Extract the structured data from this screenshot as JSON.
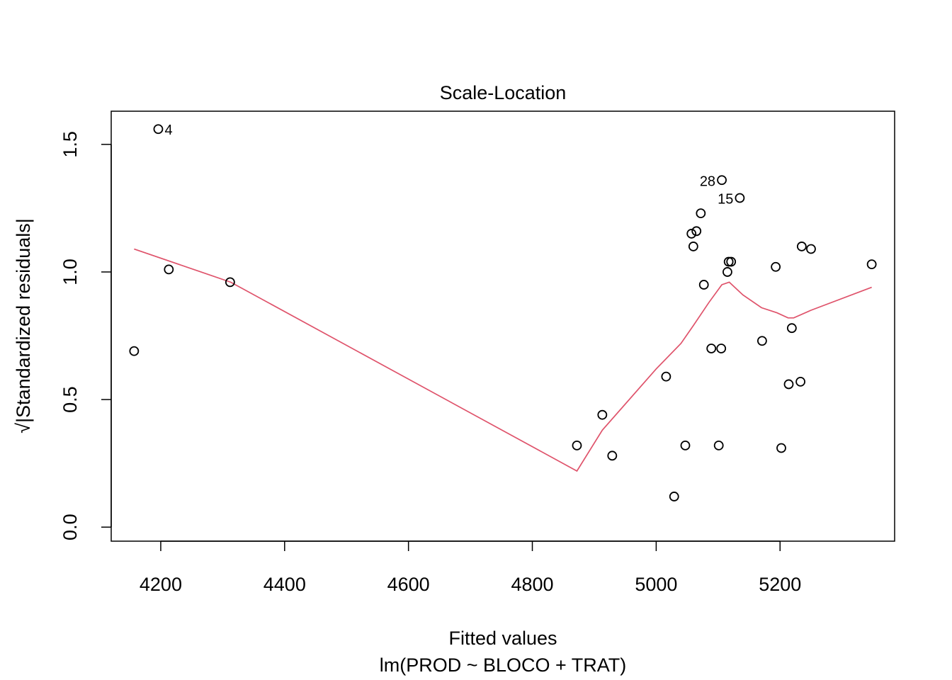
{
  "chart_data": {
    "type": "scatter",
    "title": "Scale-Location",
    "xlabel": "Fitted values",
    "subtitle": "lm(PROD ~ BLOCO + TRAT)",
    "ylabel": "√|Standardized residuals|",
    "xlim": [
      4120,
      5385
    ],
    "ylim": [
      -0.055,
      1.63
    ],
    "x_ticks": [
      4200,
      4400,
      4600,
      4800,
      5000,
      5200
    ],
    "y_ticks": [
      0.0,
      0.5,
      1.0,
      1.5
    ],
    "x_tick_labels": [
      "4200",
      "4400",
      "4600",
      "4800",
      "5000",
      "5200"
    ],
    "y_tick_labels": [
      "0.0",
      "0.5",
      "1.0",
      "1.5"
    ],
    "grid": false,
    "points": [
      {
        "x": 4157,
        "y": 0.69
      },
      {
        "x": 4196,
        "y": 1.56,
        "label": "4"
      },
      {
        "x": 4213,
        "y": 1.01
      },
      {
        "x": 4312,
        "y": 0.96
      },
      {
        "x": 4872,
        "y": 0.32
      },
      {
        "x": 4913,
        "y": 0.44
      },
      {
        "x": 4929,
        "y": 0.28
      },
      {
        "x": 5016,
        "y": 0.59
      },
      {
        "x": 5029,
        "y": 0.12
      },
      {
        "x": 5047,
        "y": 0.32
      },
      {
        "x": 5057,
        "y": 1.15
      },
      {
        "x": 5060,
        "y": 1.1
      },
      {
        "x": 5065,
        "y": 1.16
      },
      {
        "x": 5072,
        "y": 1.23
      },
      {
        "x": 5077,
        "y": 0.95
      },
      {
        "x": 5089,
        "y": 0.7
      },
      {
        "x": 5101,
        "y": 0.32
      },
      {
        "x": 5105,
        "y": 0.7
      },
      {
        "x": 5106,
        "y": 1.36,
        "label": "28"
      },
      {
        "x": 5115,
        "y": 1.0
      },
      {
        "x": 5117,
        "y": 1.04
      },
      {
        "x": 5121,
        "y": 1.04
      },
      {
        "x": 5135,
        "y": 1.29,
        "label": "15"
      },
      {
        "x": 5171,
        "y": 0.73
      },
      {
        "x": 5193,
        "y": 1.02
      },
      {
        "x": 5202,
        "y": 0.31
      },
      {
        "x": 5214,
        "y": 0.56
      },
      {
        "x": 5219,
        "y": 0.78
      },
      {
        "x": 5233,
        "y": 0.57
      },
      {
        "x": 5235,
        "y": 1.1
      },
      {
        "x": 5250,
        "y": 1.09
      },
      {
        "x": 5348,
        "y": 1.03
      }
    ],
    "smooth_line": {
      "color": "#DF536B",
      "x": [
        4157,
        4313,
        4872,
        4913,
        5000,
        5040,
        5060,
        5085,
        5106,
        5118,
        5140,
        5170,
        5195,
        5213,
        5222,
        5250,
        5348
      ],
      "y": [
        1.09,
        0.96,
        0.22,
        0.38,
        0.62,
        0.72,
        0.79,
        0.88,
        0.95,
        0.96,
        0.91,
        0.86,
        0.84,
        0.82,
        0.82,
        0.85,
        0.94
      ]
    }
  }
}
